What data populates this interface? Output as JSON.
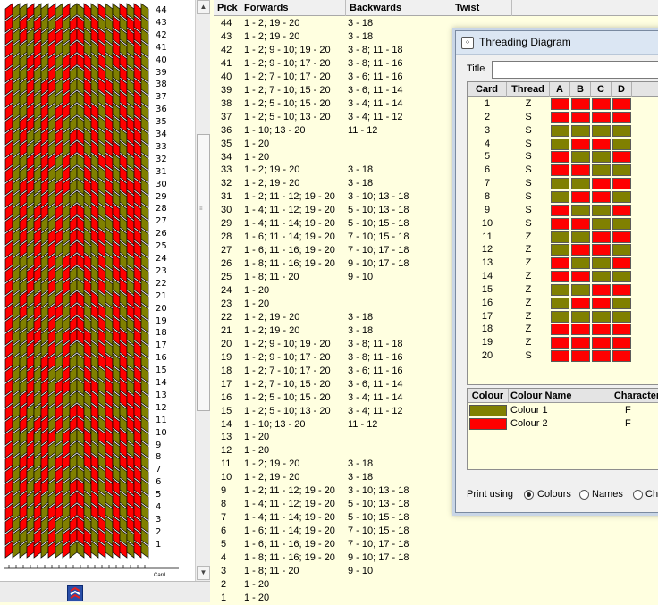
{
  "pattern": {
    "colors": {
      "thread1": "#808000",
      "thread2": "#ff0000",
      "outline": "#000000"
    },
    "pick_labels": [
      "44",
      "43",
      "42",
      "41",
      "40",
      "39",
      "38",
      "37",
      "36",
      "35",
      "34",
      "33",
      "32",
      "31",
      "30",
      "29",
      "28",
      "27",
      "26",
      "25",
      "24",
      "23",
      "22",
      "21",
      "20",
      "19",
      "18",
      "17",
      "16",
      "15",
      "14",
      "13",
      "12",
      "11",
      "10",
      "9",
      "8",
      "7",
      "6",
      "5",
      "4",
      "3",
      "2",
      "1"
    ],
    "card_axis_label": "Card"
  },
  "table": {
    "headers": {
      "pick": "Pick",
      "forwards": "Forwards",
      "backwards": "Backwards",
      "twist": "Twist"
    },
    "rows": [
      {
        "pick": "44",
        "forwards": "1 - 2; 19 - 20",
        "backwards": "3 - 18"
      },
      {
        "pick": "43",
        "forwards": "1 - 2; 19 - 20",
        "backwards": "3 - 18"
      },
      {
        "pick": "42",
        "forwards": "1 - 2; 9 - 10; 19 - 20",
        "backwards": "3 - 8; 11 - 18"
      },
      {
        "pick": "41",
        "forwards": "1 - 2; 9 - 10; 17 - 20",
        "backwards": "3 - 8; 11 - 16"
      },
      {
        "pick": "40",
        "forwards": "1 - 2; 7 - 10; 17 - 20",
        "backwards": "3 - 6; 11 - 16"
      },
      {
        "pick": "39",
        "forwards": "1 - 2; 7 - 10; 15 - 20",
        "backwards": "3 - 6; 11 - 14"
      },
      {
        "pick": "38",
        "forwards": "1 - 2; 5 - 10; 15 - 20",
        "backwards": "3 - 4; 11 - 14"
      },
      {
        "pick": "37",
        "forwards": "1 - 2; 5 - 10; 13 - 20",
        "backwards": "3 - 4; 11 - 12"
      },
      {
        "pick": "36",
        "forwards": "1 - 10; 13 - 20",
        "backwards": "11 - 12"
      },
      {
        "pick": "35",
        "forwards": "1 - 20",
        "backwards": ""
      },
      {
        "pick": "34",
        "forwards": "1 - 20",
        "backwards": ""
      },
      {
        "pick": "33",
        "forwards": "1 - 2; 19 - 20",
        "backwards": "3 - 18"
      },
      {
        "pick": "32",
        "forwards": "1 - 2; 19 - 20",
        "backwards": "3 - 18"
      },
      {
        "pick": "31",
        "forwards": "1 - 2; 11 - 12; 19 - 20",
        "backwards": "3 - 10; 13 - 18"
      },
      {
        "pick": "30",
        "forwards": "1 - 4; 11 - 12; 19 - 20",
        "backwards": "5 - 10; 13 - 18"
      },
      {
        "pick": "29",
        "forwards": "1 - 4; 11 - 14; 19 - 20",
        "backwards": "5 - 10; 15 - 18"
      },
      {
        "pick": "28",
        "forwards": "1 - 6; 11 - 14; 19 - 20",
        "backwards": "7 - 10; 15 - 18"
      },
      {
        "pick": "27",
        "forwards": "1 - 6; 11 - 16; 19 - 20",
        "backwards": "7 - 10; 17 - 18"
      },
      {
        "pick": "26",
        "forwards": "1 - 8; 11 - 16; 19 - 20",
        "backwards": "9 - 10; 17 - 18"
      },
      {
        "pick": "25",
        "forwards": "1 - 8; 11 - 20",
        "backwards": "9 - 10"
      },
      {
        "pick": "24",
        "forwards": "1 - 20",
        "backwards": ""
      },
      {
        "pick": "23",
        "forwards": "1 - 20",
        "backwards": ""
      },
      {
        "pick": "22",
        "forwards": "1 - 2; 19 - 20",
        "backwards": "3 - 18"
      },
      {
        "pick": "21",
        "forwards": "1 - 2; 19 - 20",
        "backwards": "3 - 18"
      },
      {
        "pick": "20",
        "forwards": "1 - 2; 9 - 10; 19 - 20",
        "backwards": "3 - 8; 11 - 18"
      },
      {
        "pick": "19",
        "forwards": "1 - 2; 9 - 10; 17 - 20",
        "backwards": "3 - 8; 11 - 16"
      },
      {
        "pick": "18",
        "forwards": "1 - 2; 7 - 10; 17 - 20",
        "backwards": "3 - 6; 11 - 16"
      },
      {
        "pick": "17",
        "forwards": "1 - 2; 7 - 10; 15 - 20",
        "backwards": "3 - 6; 11 - 14"
      },
      {
        "pick": "16",
        "forwards": "1 - 2; 5 - 10; 15 - 20",
        "backwards": "3 - 4; 11 - 14"
      },
      {
        "pick": "15",
        "forwards": "1 - 2; 5 - 10; 13 - 20",
        "backwards": "3 - 4; 11 - 12"
      },
      {
        "pick": "14",
        "forwards": "1 - 10; 13 - 20",
        "backwards": "11 - 12"
      },
      {
        "pick": "13",
        "forwards": "1 - 20",
        "backwards": ""
      },
      {
        "pick": "12",
        "forwards": "1 - 20",
        "backwards": ""
      },
      {
        "pick": "11",
        "forwards": "1 - 2; 19 - 20",
        "backwards": "3 - 18"
      },
      {
        "pick": "10",
        "forwards": "1 - 2; 19 - 20",
        "backwards": "3 - 18"
      },
      {
        "pick": "9",
        "forwards": "1 - 2; 11 - 12; 19 - 20",
        "backwards": "3 - 10; 13 - 18"
      },
      {
        "pick": "8",
        "forwards": "1 - 4; 11 - 12; 19 - 20",
        "backwards": "5 - 10; 13 - 18"
      },
      {
        "pick": "7",
        "forwards": "1 - 4; 11 - 14; 19 - 20",
        "backwards": "5 - 10; 15 - 18"
      },
      {
        "pick": "6",
        "forwards": "1 - 6; 11 - 14; 19 - 20",
        "backwards": "7 - 10; 15 - 18"
      },
      {
        "pick": "5",
        "forwards": "1 - 6; 11 - 16; 19 - 20",
        "backwards": "7 - 10; 17 - 18"
      },
      {
        "pick": "4",
        "forwards": "1 - 8; 11 - 16; 19 - 20",
        "backwards": "9 - 10; 17 - 18"
      },
      {
        "pick": "3",
        "forwards": "1 - 8; 11 - 20",
        "backwards": "9 - 10"
      },
      {
        "pick": "2",
        "forwards": "1 - 20",
        "backwards": ""
      },
      {
        "pick": "1",
        "forwards": "1 - 20",
        "backwards": ""
      }
    ]
  },
  "dialog": {
    "title": "Threading Diagram",
    "title_label": "Title",
    "title_value": "",
    "grid_headers": {
      "card": "Card",
      "thread": "Thread",
      "a": "A",
      "b": "B",
      "c": "C",
      "d": "D"
    },
    "cards": [
      {
        "card": "1",
        "thread": "Z",
        "holes": [
          2,
          2,
          2,
          2
        ]
      },
      {
        "card": "2",
        "thread": "S",
        "holes": [
          2,
          2,
          2,
          2
        ]
      },
      {
        "card": "3",
        "thread": "S",
        "holes": [
          1,
          1,
          1,
          1
        ]
      },
      {
        "card": "4",
        "thread": "S",
        "holes": [
          1,
          2,
          2,
          1
        ]
      },
      {
        "card": "5",
        "thread": "S",
        "holes": [
          2,
          1,
          1,
          2
        ]
      },
      {
        "card": "6",
        "thread": "S",
        "holes": [
          2,
          2,
          1,
          1
        ]
      },
      {
        "card": "7",
        "thread": "S",
        "holes": [
          1,
          1,
          2,
          2
        ]
      },
      {
        "card": "8",
        "thread": "S",
        "holes": [
          1,
          2,
          2,
          1
        ]
      },
      {
        "card": "9",
        "thread": "S",
        "holes": [
          2,
          1,
          1,
          2
        ]
      },
      {
        "card": "10",
        "thread": "S",
        "holes": [
          2,
          2,
          1,
          1
        ]
      },
      {
        "card": "11",
        "thread": "Z",
        "holes": [
          1,
          1,
          2,
          2
        ]
      },
      {
        "card": "12",
        "thread": "Z",
        "holes": [
          1,
          2,
          2,
          1
        ]
      },
      {
        "card": "13",
        "thread": "Z",
        "holes": [
          2,
          1,
          1,
          2
        ]
      },
      {
        "card": "14",
        "thread": "Z",
        "holes": [
          2,
          2,
          1,
          1
        ]
      },
      {
        "card": "15",
        "thread": "Z",
        "holes": [
          1,
          1,
          2,
          2
        ]
      },
      {
        "card": "16",
        "thread": "Z",
        "holes": [
          1,
          2,
          2,
          1
        ]
      },
      {
        "card": "17",
        "thread": "Z",
        "holes": [
          1,
          1,
          1,
          1
        ]
      },
      {
        "card": "18",
        "thread": "Z",
        "holes": [
          2,
          2,
          2,
          2
        ]
      },
      {
        "card": "19",
        "thread": "Z",
        "holes": [
          2,
          2,
          2,
          2
        ]
      },
      {
        "card": "20",
        "thread": "S",
        "holes": [
          2,
          2,
          2,
          2
        ]
      }
    ],
    "colour_headers": {
      "colour": "Colour",
      "name": "Colour Name",
      "character": "Character"
    },
    "colours": [
      {
        "name": "Colour 1",
        "character": "F",
        "hex": "#808000"
      },
      {
        "name": "Colour 2",
        "character": "F",
        "hex": "#ff0000"
      }
    ],
    "print_using": {
      "label": "Print using",
      "options": [
        {
          "label": "Colours",
          "selected": true
        },
        {
          "label": "Names",
          "selected": false
        },
        {
          "label": "Chara",
          "selected": false
        }
      ]
    }
  }
}
